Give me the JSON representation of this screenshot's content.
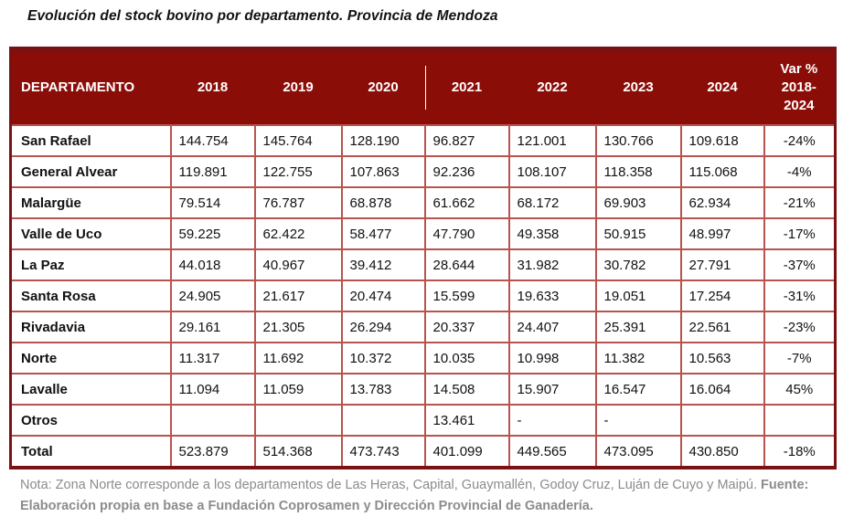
{
  "title": "Evolución del stock bovino por departamento. Provincia de Mendoza",
  "colors": {
    "header_bg": "#8B0D08",
    "header_text": "#FFFFFF",
    "inner_border": "#B85450",
    "outer_border": "#7A1113",
    "body_text": "#111111",
    "note_text": "#8C8C8C"
  },
  "table": {
    "columns": [
      "DEPARTAMENTO",
      "2018",
      "2019",
      "2020",
      "2021",
      "2022",
      "2023",
      "2024",
      "Var % 2018-2024"
    ],
    "rows": [
      {
        "name": "San Rafael",
        "values": [
          "144.754",
          "145.764",
          "128.190",
          "96.827",
          "121.001",
          "130.766",
          "109.618",
          "-24%"
        ]
      },
      {
        "name": "General Alvear",
        "values": [
          "119.891",
          "122.755",
          "107.863",
          "92.236",
          "108.107",
          "118.358",
          "115.068",
          "-4%"
        ]
      },
      {
        "name": "Malargüe",
        "values": [
          "79.514",
          "76.787",
          "68.878",
          "61.662",
          "68.172",
          "69.903",
          "62.934",
          "-21%"
        ]
      },
      {
        "name": "Valle de Uco",
        "values": [
          "59.225",
          "62.422",
          "58.477",
          "47.790",
          "49.358",
          "50.915",
          "48.997",
          "-17%"
        ]
      },
      {
        "name": "La Paz",
        "values": [
          "44.018",
          "40.967",
          "39.412",
          "28.644",
          "31.982",
          "30.782",
          "27.791",
          "-37%"
        ]
      },
      {
        "name": "Santa Rosa",
        "values": [
          "24.905",
          "21.617",
          "20.474",
          "15.599",
          "19.633",
          "19.051",
          "17.254",
          "-31%"
        ]
      },
      {
        "name": "Rivadavia",
        "values": [
          "29.161",
          "21.305",
          "26.294",
          "20.337",
          "24.407",
          "25.391",
          "22.561",
          "-23%"
        ]
      },
      {
        "name": "Norte",
        "values": [
          "11.317",
          "11.692",
          "10.372",
          "10.035",
          "10.998",
          "11.382",
          "10.563",
          "-7%"
        ]
      },
      {
        "name": "Lavalle",
        "values": [
          "11.094",
          "11.059",
          "13.783",
          "14.508",
          "15.907",
          "16.547",
          "16.064",
          "45%"
        ]
      },
      {
        "name": "Otros",
        "values": [
          "",
          "",
          "",
          "13.461",
          "-",
          "-",
          "",
          ""
        ]
      },
      {
        "name": "Total",
        "values": [
          "523.879",
          "514.368",
          "473.743",
          "401.099",
          "449.565",
          "473.095",
          "430.850",
          "-18%"
        ]
      }
    ]
  },
  "footer": {
    "nota": "Nota: Zona Norte corresponde a los departamentos de Las Heras, Capital, Guaymallén, Godoy Cruz, Luján de Cuyo y Maipú. ",
    "fuente": "Fuente: Elaboración propia en base a Fundación Coprosamen y Dirección Provincial de Ganadería."
  }
}
